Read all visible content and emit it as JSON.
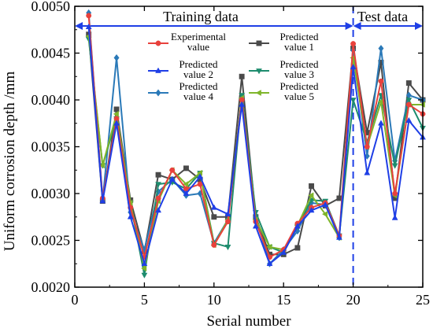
{
  "chart_data": {
    "type": "line",
    "title": "",
    "xlabel": "Serial number",
    "ylabel": "Uniform corrosion depth /mm",
    "xlim": [
      0,
      25
    ],
    "ylim": [
      0.002,
      0.005
    ],
    "x_ticks": [
      "0",
      "5",
      "10",
      "15",
      "20",
      "25"
    ],
    "y_ticks": [
      "0.0020",
      "0.0025",
      "0.0030",
      "0.0035",
      "0.0040",
      "0.0045",
      "0.0050"
    ],
    "grid": false,
    "legend_position": "top-right (inside plot)",
    "annotations": {
      "training_label": "Training data",
      "test_label": "Test data",
      "split_x": 20
    },
    "x": [
      1,
      2,
      3,
      4,
      5,
      6,
      7,
      8,
      9,
      10,
      11,
      12,
      13,
      14,
      15,
      16,
      17,
      18,
      19,
      20,
      21,
      22,
      23,
      24,
      25
    ],
    "series": [
      {
        "name": "Experimental value",
        "color": "#e8413c",
        "marker": "circle",
        "values": [
          0.0049,
          0.00295,
          0.0038,
          0.00285,
          0.00232,
          0.00295,
          0.00325,
          0.00305,
          0.0031,
          0.00245,
          0.0027,
          0.004,
          0.0027,
          0.00232,
          0.0024,
          0.00268,
          0.00285,
          0.0029,
          0.00255,
          0.0046,
          0.0035,
          0.0042,
          0.003,
          0.00395,
          0.00385
        ]
      },
      {
        "name": "Predicted value 1",
        "color": "#4a4a4a",
        "marker": "square",
        "values": [
          0.0047,
          0.00292,
          0.0039,
          0.00293,
          0.00238,
          0.0032,
          0.00315,
          0.00327,
          0.00315,
          0.00275,
          0.00275,
          0.00425,
          0.00275,
          0.00235,
          0.00235,
          0.00242,
          0.00308,
          0.00287,
          0.00295,
          0.00455,
          0.00365,
          0.0044,
          0.00295,
          0.00418,
          0.004
        ]
      },
      {
        "name": "Predicted value 2",
        "color": "#1f3fe6",
        "marker": "triangle-up",
        "values": [
          0.00478,
          0.00292,
          0.00375,
          0.00275,
          0.00225,
          0.00282,
          0.00315,
          0.003,
          0.00318,
          0.00285,
          0.00278,
          0.00395,
          0.00265,
          0.00225,
          0.00237,
          0.00265,
          0.00282,
          0.00288,
          0.00253,
          0.00435,
          0.00322,
          0.00375,
          0.00274,
          0.00378,
          0.0036
        ]
      },
      {
        "name": "Predicted value 3",
        "color": "#1e8c6e",
        "marker": "triangle-down",
        "values": [
          0.00465,
          0.0033,
          0.0038,
          0.0029,
          0.00213,
          0.0031,
          0.00312,
          0.00305,
          0.00322,
          0.00247,
          0.00243,
          0.00405,
          0.0028,
          0.00243,
          0.00237,
          0.00265,
          0.00293,
          0.00292,
          0.00255,
          0.004,
          0.00355,
          0.00405,
          0.0033,
          0.004,
          0.0037
        ]
      },
      {
        "name": "Predicted value 4",
        "color": "#2a79b8",
        "marker": "diamond",
        "values": [
          0.00493,
          0.00293,
          0.00445,
          0.0028,
          0.0024,
          0.00302,
          0.00315,
          0.00298,
          0.003,
          0.00247,
          0.00272,
          0.00402,
          0.00275,
          0.00225,
          0.0024,
          0.0026,
          0.0029,
          0.00288,
          0.00253,
          0.00453,
          0.0034,
          0.00455,
          0.00335,
          0.00405,
          0.004
        ]
      },
      {
        "name": "Predicted value 5",
        "color": "#7fb52b",
        "marker": "triangle-left",
        "values": [
          0.00468,
          0.0033,
          0.00385,
          0.0029,
          0.0022,
          0.00292,
          0.00325,
          0.0031,
          0.00322,
          0.00245,
          0.00272,
          0.00402,
          0.00272,
          0.00243,
          0.0024,
          0.00266,
          0.00298,
          0.00278,
          0.00253,
          0.00445,
          0.0035,
          0.00398,
          0.00298,
          0.00395,
          0.00395
        ]
      }
    ]
  }
}
